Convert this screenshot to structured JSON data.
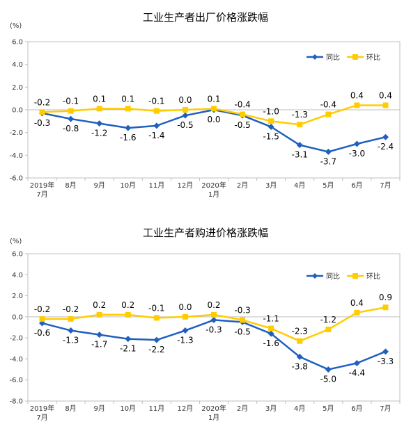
{
  "colors": {
    "series1": "#1f5fbf",
    "series2": "#ffcc00",
    "grid": "#d9d9d9",
    "axis": "#bfbfbf"
  },
  "chart_data": [
    {
      "type": "line",
      "title": "工业生产者出厂价格涨跌幅",
      "unit": "(%)",
      "categories": [
        [
          "2019年",
          "7月"
        ],
        [
          "8月"
        ],
        [
          "9月"
        ],
        [
          "10月"
        ],
        [
          "11月"
        ],
        [
          "12月"
        ],
        [
          "2020年",
          "1月"
        ],
        [
          "2月"
        ],
        [
          "3月"
        ],
        [
          "4月"
        ],
        [
          "5月"
        ],
        [
          "6月"
        ],
        [
          "7月"
        ]
      ],
      "ylim": [
        -6.0,
        6.0
      ],
      "yticks": [
        "6.0",
        "4.0",
        "2.0",
        "0.0",
        "-2.0",
        "-4.0",
        "-6.0"
      ],
      "legend_position": "top-right",
      "series": [
        {
          "name": "同比",
          "marker": "diamond",
          "values": [
            -0.3,
            -0.8,
            -1.2,
            -1.6,
            -1.4,
            -0.5,
            0.0,
            -0.5,
            -1.5,
            -3.1,
            -3.7,
            -3.0,
            -2.4
          ],
          "labels": [
            "-0.3",
            "-0.8",
            "-1.2",
            "-1.6",
            "-1.4",
            "-0.5",
            "0.0",
            "-0.5",
            "-1.5",
            "-3.1",
            "-3.7",
            "-3.0",
            "-2.4"
          ]
        },
        {
          "name": "环比",
          "marker": "square",
          "values": [
            -0.2,
            -0.1,
            0.1,
            0.1,
            -0.1,
            0.0,
            0.1,
            -0.4,
            -1.0,
            -1.3,
            -0.4,
            0.4,
            0.4
          ],
          "labels": [
            "-0.2",
            "-0.1",
            "0.1",
            "0.1",
            "-0.1",
            "0.0",
            "0.1",
            "-0.4",
            "-1.0",
            "-1.3",
            "-0.4",
            "0.4",
            "0.4"
          ]
        }
      ]
    },
    {
      "type": "line",
      "title": "工业生产者购进价格涨跌幅",
      "unit": "(%)",
      "categories": [
        [
          "2019年",
          "7月"
        ],
        [
          "8月"
        ],
        [
          "9月"
        ],
        [
          "10月"
        ],
        [
          "11月"
        ],
        [
          "12月"
        ],
        [
          "2020年",
          "1月"
        ],
        [
          "2月"
        ],
        [
          "3月"
        ],
        [
          "4月"
        ],
        [
          "5月"
        ],
        [
          "6月"
        ],
        [
          "7月"
        ]
      ],
      "ylim": [
        -8.0,
        6.0
      ],
      "yticks": [
        "6.0",
        "4.0",
        "2.0",
        "0.0",
        "-2.0",
        "-4.0",
        "-6.0",
        "-8.0"
      ],
      "legend_position": "top-right",
      "series": [
        {
          "name": "同比",
          "marker": "diamond",
          "values": [
            -0.6,
            -1.3,
            -1.7,
            -2.1,
            -2.2,
            -1.3,
            -0.3,
            -0.5,
            -1.6,
            -3.8,
            -5.0,
            -4.4,
            -3.3
          ],
          "labels": [
            "-0.6",
            "-1.3",
            "-1.7",
            "-2.1",
            "-2.2",
            "-1.3",
            "-0.3",
            "-0.5",
            "-1.6",
            "-3.8",
            "-5.0",
            "-4.4",
            "-3.3"
          ]
        },
        {
          "name": "环比",
          "marker": "square",
          "values": [
            -0.2,
            -0.2,
            0.2,
            0.2,
            -0.1,
            0.0,
            0.2,
            -0.3,
            -1.1,
            -2.3,
            -1.2,
            0.4,
            0.9
          ],
          "labels": [
            "-0.2",
            "-0.2",
            "0.2",
            "0.2",
            "-0.1",
            "0.0",
            "0.2",
            "-0.3",
            "-1.1",
            "-2.3",
            "-1.2",
            "0.4",
            "0.9"
          ]
        }
      ]
    }
  ]
}
